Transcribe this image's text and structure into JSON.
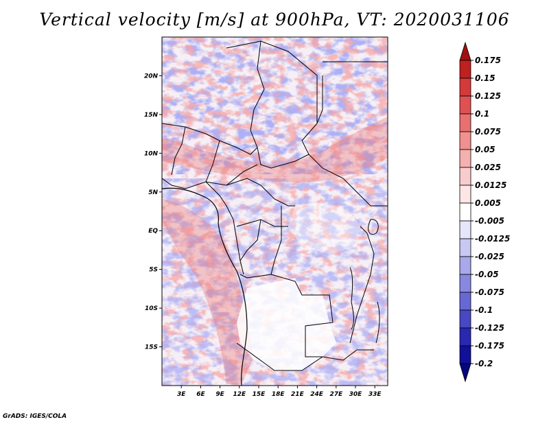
{
  "title": "Vertical velocity [m/s] at 900hPa, VT: 2020031106",
  "credit": "GrADS: IGES/COLA",
  "map": {
    "lon_range": [
      0,
      35
    ],
    "lat_range": [
      -20,
      25
    ],
    "x_ticks": [
      "3E",
      "6E",
      "9E",
      "12E",
      "15E",
      "18E",
      "21E",
      "24E",
      "27E",
      "30E",
      "33E"
    ],
    "y_ticks": [
      "20N",
      "15N",
      "10N",
      "5N",
      "EQ",
      "5S",
      "10S",
      "15S"
    ]
  },
  "colorbar": {
    "labels": [
      "0.175",
      "0.15",
      "0.125",
      "0.1",
      "0.075",
      "0.05",
      "0.025",
      "0.0125",
      "0.005",
      "-0.005",
      "-0.0125",
      "-0.025",
      "-0.05",
      "-0.075",
      "-0.1",
      "-0.125",
      "-0.175",
      "-0.2"
    ],
    "colors": [
      "#a01010",
      "#bf2020",
      "#d43a3a",
      "#e05050",
      "#e87070",
      "#f09090",
      "#f5b0b0",
      "#f8cccc",
      "#fce6e6",
      "#ffffff",
      "#e6e6fa",
      "#c8c8f2",
      "#a8a8ea",
      "#8888e0",
      "#6868d4",
      "#4848c4",
      "#2828b0",
      "#101098",
      "#060680"
    ]
  }
}
